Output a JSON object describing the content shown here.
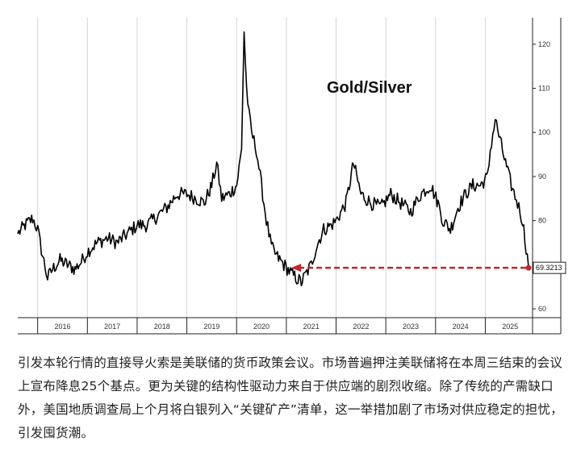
{
  "chart_data": {
    "type": "line",
    "title": "Gold/Silver",
    "x_ticks": [
      "2016",
      "2017",
      "2018",
      "2019",
      "2020",
      "2021",
      "2022",
      "2023",
      "2024",
      "2025"
    ],
    "y_ticks": [
      60,
      70,
      80,
      90,
      100,
      110,
      120
    ],
    "ylim": [
      58,
      126
    ],
    "xlim": [
      2015.6,
      2025.95
    ],
    "last_value": "69.3213",
    "series": [
      {
        "x": [
          2015.6,
          2015.75,
          2015.9,
          2016.0,
          2016.1,
          2016.2,
          2016.3,
          2016.45,
          2016.6,
          2016.75,
          2016.9,
          2017.0,
          2017.2,
          2017.4,
          2017.6,
          2017.8,
          2018.0,
          2018.2,
          2018.4,
          2018.6,
          2018.8,
          2019.0,
          2019.2,
          2019.35,
          2019.5,
          2019.6,
          2019.7,
          2019.85,
          2020.0,
          2020.1,
          2020.15,
          2020.2,
          2020.25,
          2020.3,
          2020.4,
          2020.5,
          2020.6,
          2020.7,
          2020.8,
          2020.95,
          2021.1,
          2021.3,
          2021.5,
          2021.6,
          2021.75,
          2021.9,
          2022.0,
          2022.2,
          2022.35,
          2022.5,
          2022.7,
          2022.9,
          2023.1,
          2023.3,
          2023.5,
          2023.7,
          2023.9,
          2024.05,
          2024.15,
          2024.3,
          2024.45,
          2024.6,
          2024.75,
          2024.9,
          2025.05,
          2025.1,
          2025.2,
          2025.3,
          2025.45,
          2025.55,
          2025.65,
          2025.75,
          2025.82,
          2025.87
        ],
        "y": [
          77,
          79,
          80.5,
          78,
          72,
          67,
          69,
          71,
          70,
          69,
          71,
          73,
          75,
          76,
          75,
          77,
          79,
          79,
          81,
          83,
          86,
          86,
          85,
          84,
          88,
          93,
          85,
          86,
          88,
          96,
          123,
          110,
          104,
          100,
          96,
          88,
          80,
          74,
          72,
          70,
          68,
          66,
          70,
          74,
          78,
          79,
          80,
          84,
          93,
          86,
          84,
          83,
          86,
          84,
          82,
          86,
          88,
          84,
          80,
          78,
          83,
          86,
          88,
          88,
          90,
          96,
          103,
          98,
          91,
          87,
          84,
          80,
          74,
          69.3
        ]
      }
    ],
    "annotation": {
      "type": "dashed-arrow",
      "from_x": 2025.87,
      "from_y": 69.3,
      "to_x": 2021.1,
      "to_y": 69.3,
      "color": "#c0282a"
    },
    "grid": "vertical",
    "line_color": "#000000"
  },
  "caption": {
    "paragraph": "引发本轮行情的直接导火索是美联储的货币政策会议。市场普遍押注美联储将在本周三结束的会议上宣布降息25个基点。更为关键的结构性驱动力来自于供应端的剧烈收缩。除了传统的产需缺口外，美国地质调查局上个月将白银列入“关键矿产”清单，这一举措加剧了市场对供应稳定的担忧，引发囤货潮。"
  }
}
